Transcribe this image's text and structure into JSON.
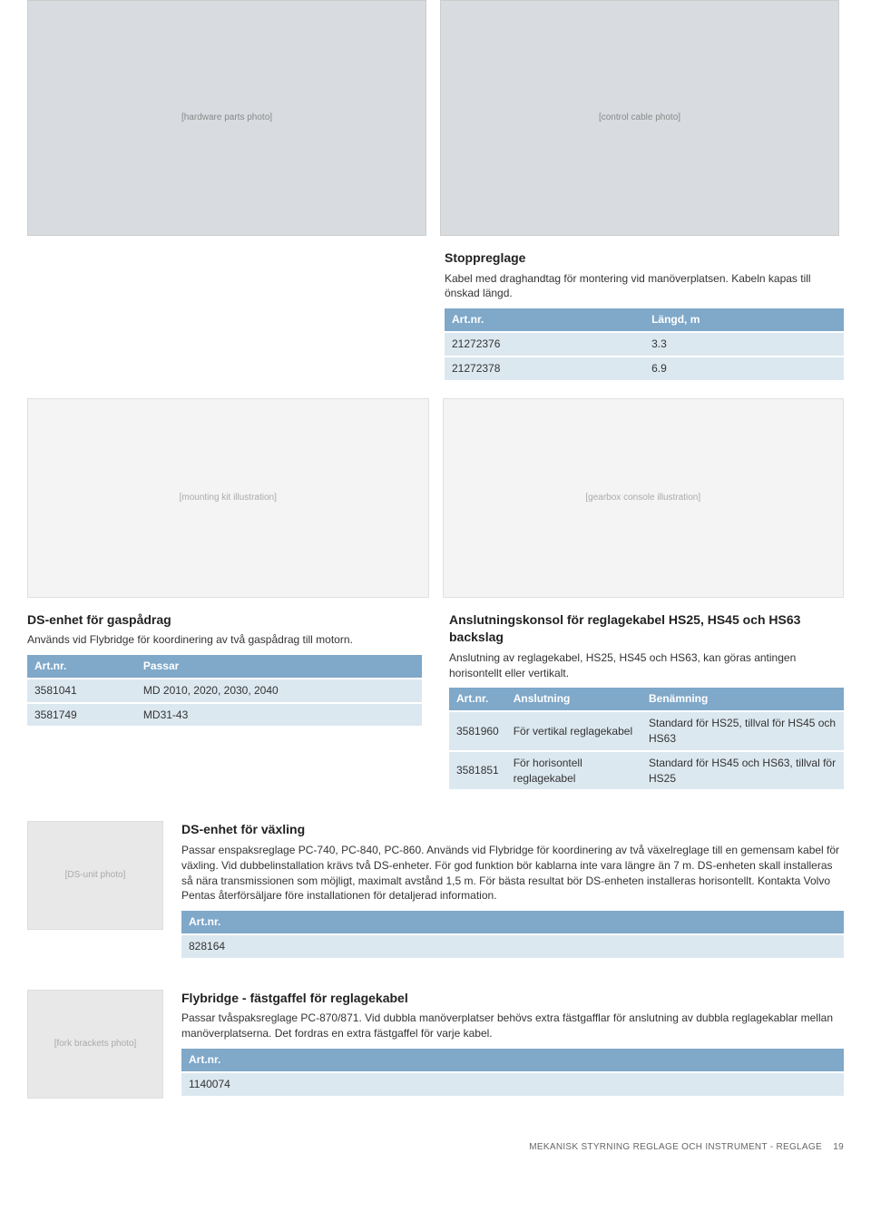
{
  "stopreglage": {
    "title": "Stoppreglage",
    "desc": "Kabel med draghandtag för montering vid manöverplatsen. Kabeln kapas till önskad längd.",
    "h1": "Art.nr.",
    "h2": "Längd, m",
    "r1c1": "21272376",
    "r1c2": "3.3",
    "r2c1": "21272378",
    "r2c2": "6.9"
  },
  "ds_gasp": {
    "title": "DS-enhet för gaspådrag",
    "desc": "Används vid Flybridge för koordinering av två gaspådrag till motorn.",
    "h1": "Art.nr.",
    "h2": "Passar",
    "r1c1": "3581041",
    "r1c2": "MD 2010, 2020, 2030, 2040",
    "r2c1": "3581749",
    "r2c2": "MD31-43"
  },
  "anslut": {
    "title": "Anslutningskonsol för reglagekabel HS25, HS45 och HS63 backslag",
    "desc": "Anslutning av reglagekabel, HS25, HS45 och HS63, kan göras antingen horisontellt eller vertikalt.",
    "h1": "Art.nr.",
    "h2": "Anslutning",
    "h3": "Benämning",
    "r1c1": "3581960",
    "r1c2": "För vertikal reglagekabel",
    "r1c3": "Standard för HS25, tillval för HS45 och HS63",
    "r2c1": "3581851",
    "r2c2": "För horisontell reglagekabel",
    "r2c3": "Standard för HS45 och HS63, tillval för HS25"
  },
  "ds_vax": {
    "title": "DS-enhet för växling",
    "desc": "Passar enspaksreglage PC-740, PC-840, PC-860. Används vid Flybridge för koordinering av två växelreglage till en gemensam kabel för växling. Vid dubbelinstallation krävs två DS-enheter. För god funktion bör kablarna inte vara längre än 7 m. DS-enheten skall installeras så nära transmissionen som möjligt, maximalt avstånd 1,5 m. För bästa resultat bör DS-enheten installeras horisontellt. Kontakta Volvo Pentas återförsäljare före installationen för detaljerad information.",
    "h1": "Art.nr.",
    "r1c1": "828164"
  },
  "flybridge": {
    "title": "Flybridge - fästgaffel för reglagekabel",
    "desc": "Passar tvåspaksreglage PC-870/871. Vid dubbla manöverplatser behövs extra fästgafflar för anslutning av dubbla reglagekablar mellan manöverplatserna. Det fordras en extra fästgaffel för varje kabel.",
    "h1": "Art.nr.",
    "r1c1": "1140074"
  },
  "footer": {
    "text": "MEKANISK STYRNING REGLAGE OCH INSTRUMENT - REGLAGE",
    "page": "19"
  },
  "placeholders": {
    "parts": "[hardware parts photo]",
    "cable": "[control cable photo]",
    "kit": "[mounting kit illustration]",
    "gearbox": "[gearbox console illustration]",
    "dsunit": "[DS-unit photo]",
    "forks": "[fork brackets photo]"
  }
}
